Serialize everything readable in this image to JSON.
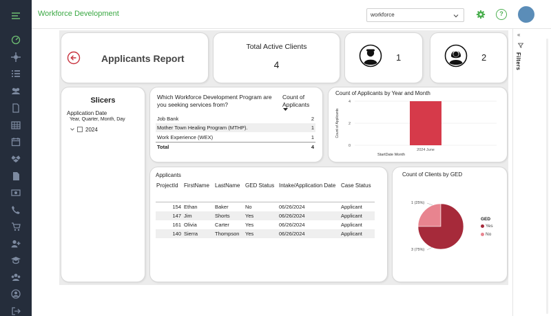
{
  "topbar": {
    "app_title": "Workforce Development",
    "workspace_value": "workforce",
    "help_glyph": "?"
  },
  "nav_icons": [
    "menu-icon",
    "gauge-icon",
    "crosshair-icon",
    "list-icon",
    "users-icon",
    "document-icon",
    "table-icon",
    "calendar-icon",
    "dropbox-icon",
    "file-icon",
    "money-icon",
    "phone-icon",
    "cart-icon",
    "add-user-icon",
    "graduation-cap-icon",
    "group-icon",
    "user-circle-icon",
    "logout-icon"
  ],
  "report": {
    "title": "Applicants Report"
  },
  "kpi": {
    "label": "Total Active Clients",
    "value": "4"
  },
  "person_cards": [
    {
      "icon": "male-person-icon",
      "count": "1"
    },
    {
      "icon": "female-person-icon",
      "count": "2"
    }
  ],
  "slicers": {
    "title": "Slicers",
    "field": "Application Date",
    "hierarchy": "Year, Quarter, Month, Day",
    "item": "2024"
  },
  "programs": {
    "question": "Which Workforce Development Program are you seeking services from?",
    "count_header": "Count of Applicants",
    "rows": [
      {
        "name": "Job Bank",
        "count": "2"
      },
      {
        "name": "Mother Town Healing Program (MTHP).",
        "count": "1"
      },
      {
        "name": "Work Experience (WEX)",
        "count": "1"
      }
    ],
    "total_label": "Total",
    "total_value": "4"
  },
  "applicants": {
    "title": "Applicants",
    "columns": [
      "ProjectId",
      "FirstName",
      "LastName",
      "GED Status",
      "Intake/Application Date",
      "Case Status"
    ],
    "rows": [
      {
        "id": "154",
        "first": "Ethan",
        "last": "Baker",
        "ged": "No",
        "date": "06/26/2024",
        "status": "Applicant"
      },
      {
        "id": "147",
        "first": "Jim",
        "last": "Shorts",
        "ged": "Yes",
        "date": "06/26/2024",
        "status": "Applicant"
      },
      {
        "id": "161",
        "first": "Olivia",
        "last": "Carter",
        "ged": "Yes",
        "date": "06/26/2024",
        "status": "Applicant"
      },
      {
        "id": "140",
        "first": "Sierra",
        "last": "Thompson",
        "ged": "Yes",
        "date": "06/26/2024",
        "status": "Applicant"
      }
    ]
  },
  "filters": {
    "label": "Filters",
    "collapse_glyph": "«"
  },
  "colors": {
    "nav_bg": "#252d3b",
    "brand_green": "#3aa843",
    "bar_red": "#d63a4a",
    "pie_yes": "#a62a3a",
    "pie_no": "#e8848f"
  },
  "chart_data": [
    {
      "type": "bar",
      "title": "Count of Applicants by Year and Month",
      "categories": [
        "2024 June"
      ],
      "values": [
        4
      ],
      "xlabel": "StartDate Month",
      "ylabel": "Count of Applicants",
      "ylim": [
        0,
        4
      ],
      "yticks": [
        0,
        2,
        4
      ],
      "grid": true
    },
    {
      "type": "pie",
      "title": "Count of Clients by GED",
      "legend_title": "GED",
      "categories": [
        "Yes",
        "No"
      ],
      "values": [
        3,
        1
      ],
      "labels": [
        "3 (75%)",
        "1 (25%)"
      ],
      "legend_position": "right"
    }
  ]
}
